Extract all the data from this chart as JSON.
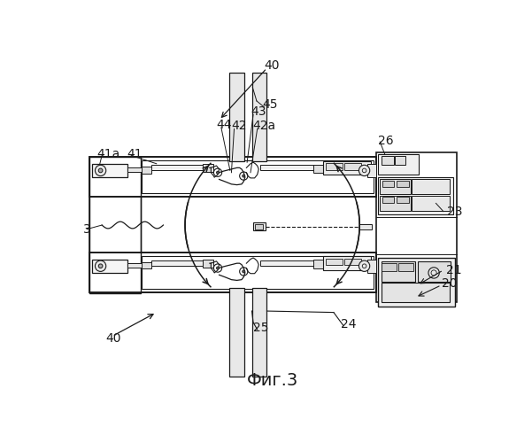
{
  "title": "Фиг.3",
  "bg_color": "#ffffff",
  "lc": "#1a1a1a",
  "labels": [
    [
      "40",
      288,
      18
    ],
    [
      "40",
      55,
      418
    ],
    [
      "45",
      285,
      75
    ],
    [
      "44",
      218,
      105
    ],
    [
      "43",
      268,
      86
    ],
    [
      "42",
      240,
      107
    ],
    [
      "42a",
      271,
      107
    ],
    [
      "41a",
      42,
      148
    ],
    [
      "41",
      87,
      148
    ],
    [
      "26",
      455,
      128
    ],
    [
      "3",
      22,
      258
    ],
    [
      "23",
      556,
      232
    ],
    [
      "21",
      555,
      318
    ],
    [
      "20",
      549,
      338
    ],
    [
      "25",
      272,
      403
    ],
    [
      "24",
      400,
      397
    ]
  ]
}
